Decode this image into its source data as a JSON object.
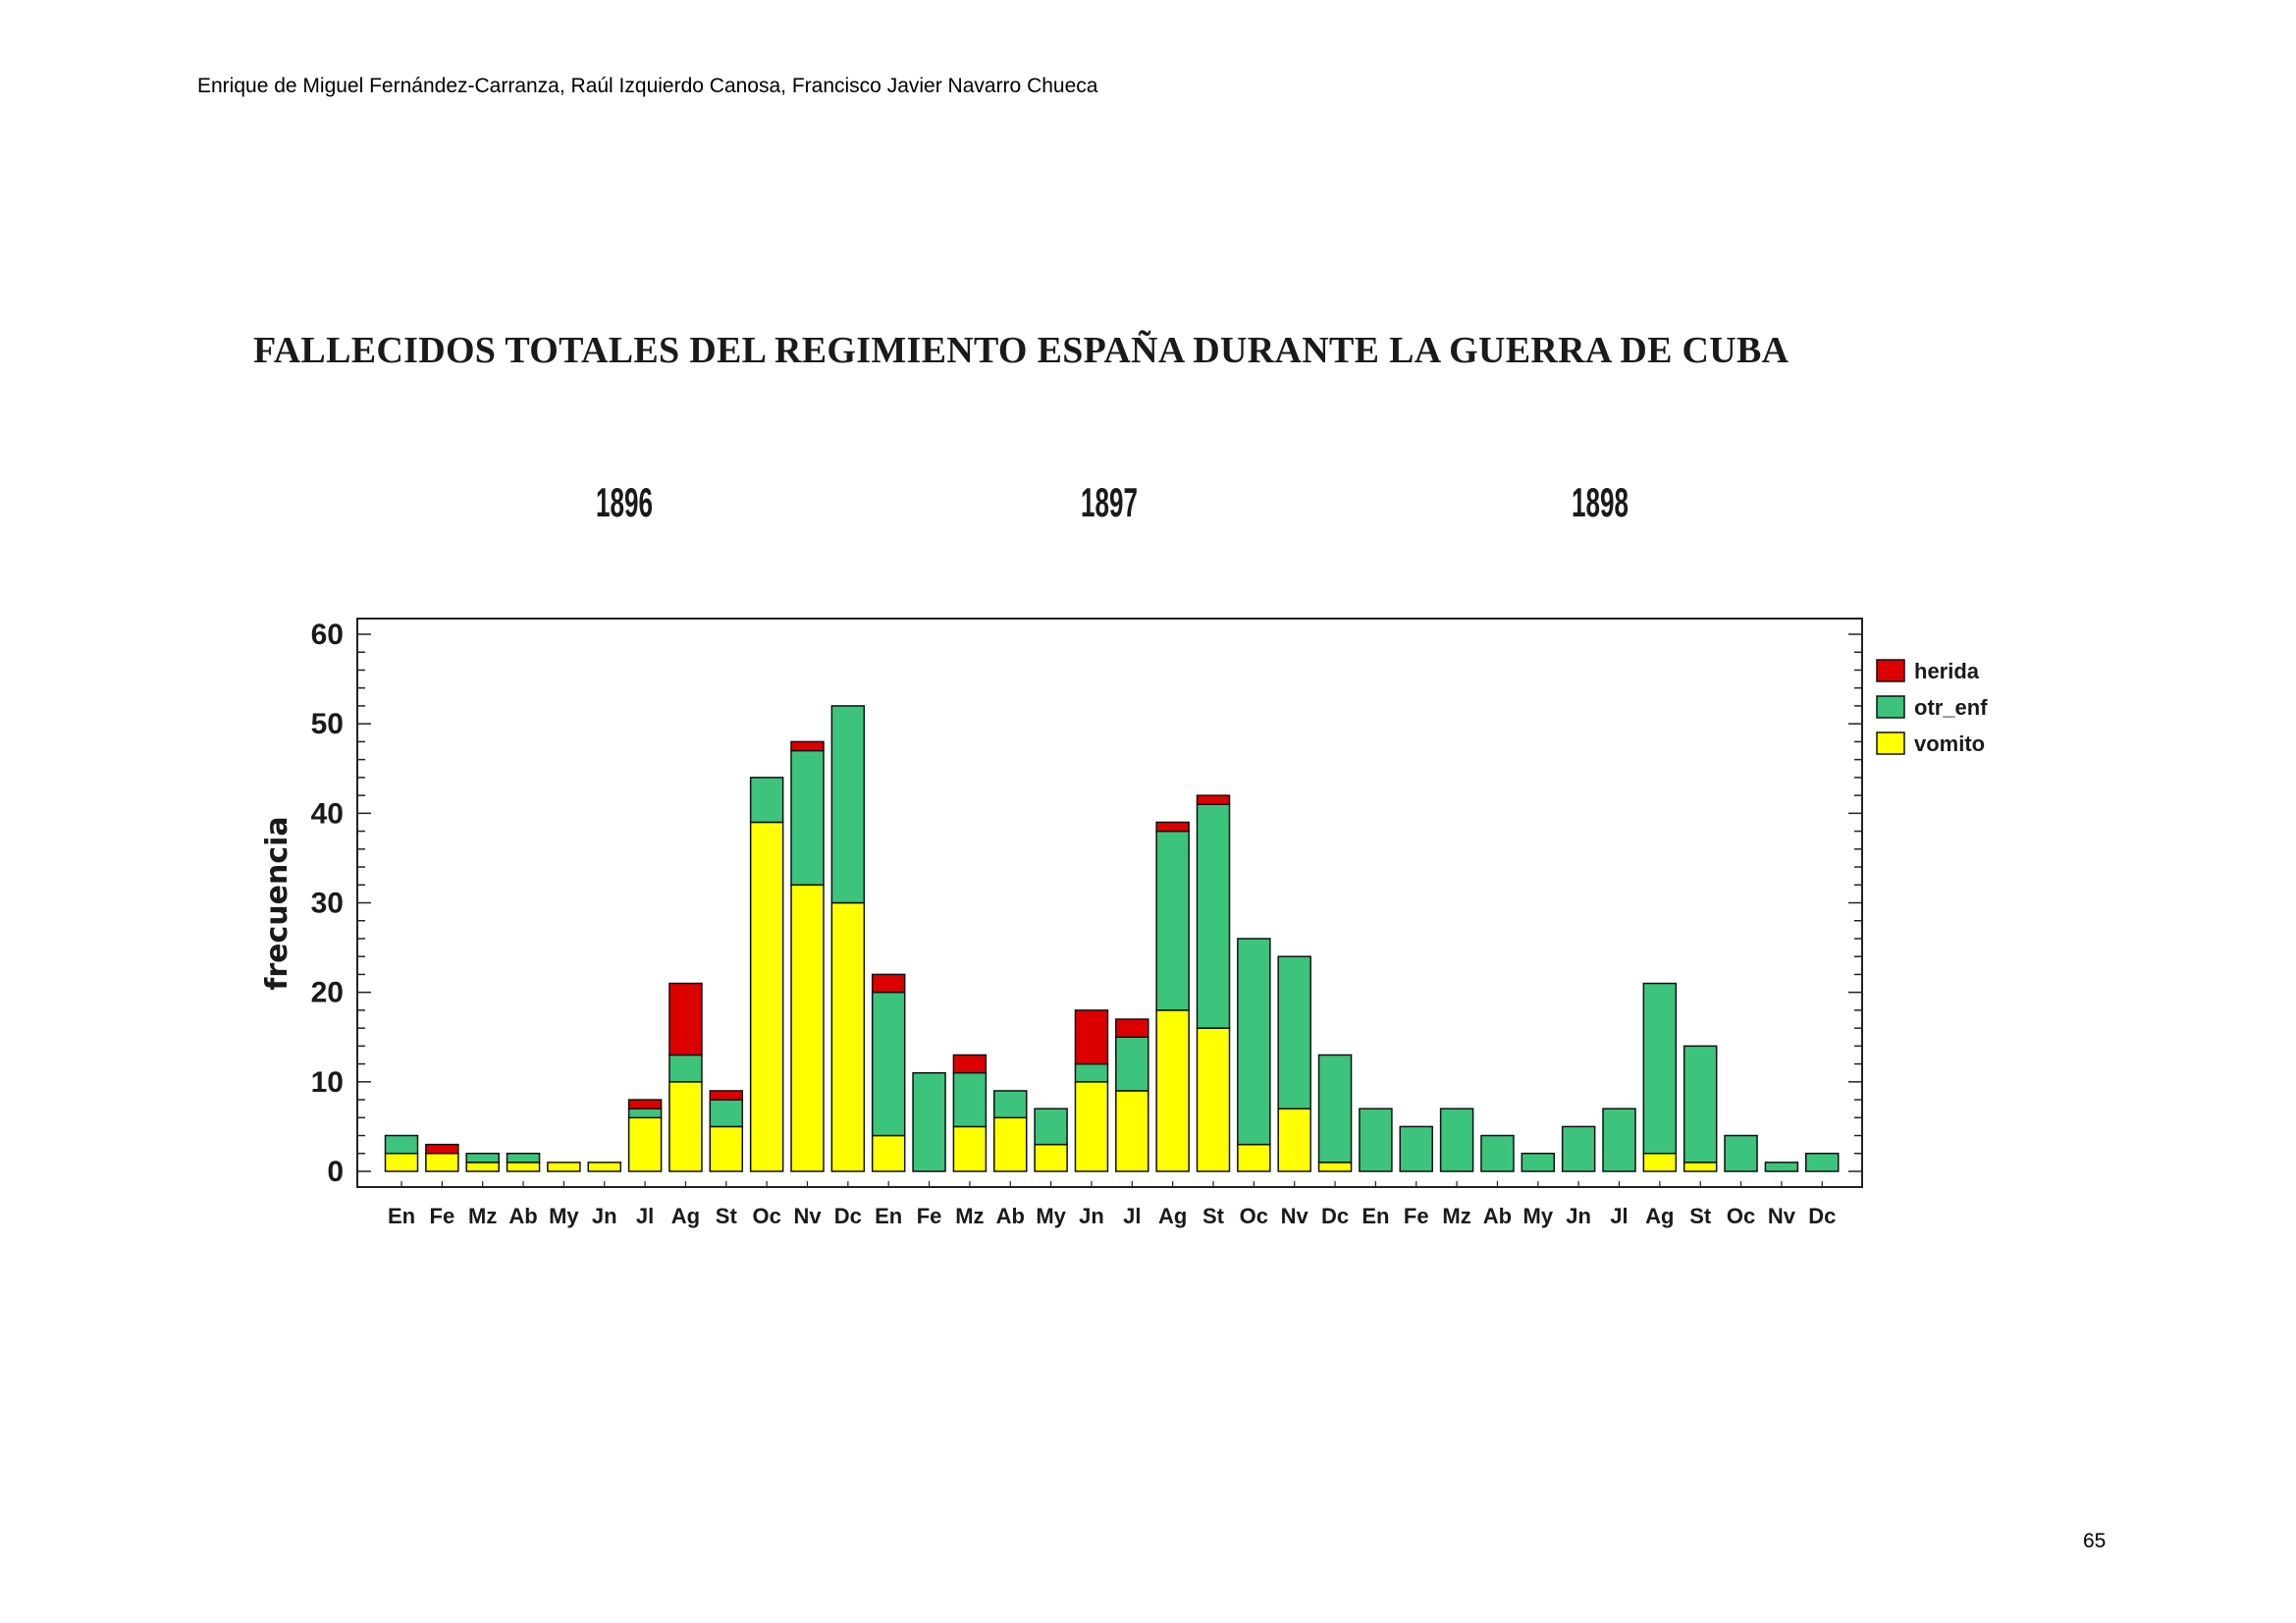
{
  "header": {
    "authors": "Enrique de Miguel Fernández-Carranza, Raúl Izquierdo Canosa, Francisco Javier Navarro Chueca"
  },
  "page_number": "65",
  "chart_data": {
    "type": "bar",
    "stacked": true,
    "title": "FALLECIDOS TOTALES DEL REGIMIENTO ESPAÑA DURANTE LA GUERRA DE CUBA",
    "years": [
      "1896",
      "1897",
      "1898"
    ],
    "xlabel": "",
    "ylabel": "frecuencia",
    "ylim": [
      0,
      62
    ],
    "yticks": [
      0,
      10,
      20,
      30,
      40,
      50,
      60
    ],
    "legend_position": "top-right",
    "categories": [
      "En",
      "Fe",
      "Mz",
      "Ab",
      "My",
      "Jn",
      "Jl",
      "Ag",
      "St",
      "Oc",
      "Nv",
      "Dc",
      "En",
      "Fe",
      "Mz",
      "Ab",
      "My",
      "Jn",
      "Jl",
      "Ag",
      "St",
      "Oc",
      "Nv",
      "Dc",
      "En",
      "Fe",
      "Mz",
      "Ab",
      "My",
      "Jn",
      "Jl",
      "Ag",
      "St",
      "Oc",
      "Nv",
      "Dc"
    ],
    "series": [
      {
        "name": "vomito",
        "color": "#ffff00",
        "values": [
          2,
          2,
          1,
          1,
          1,
          1,
          6,
          10,
          5,
          39,
          32,
          30,
          4,
          0,
          5,
          6,
          3,
          10,
          9,
          18,
          16,
          3,
          7,
          1,
          0,
          0,
          0,
          0,
          0,
          0,
          0,
          2,
          1,
          0,
          0,
          0
        ]
      },
      {
        "name": "otr_enf",
        "color": "#3cc47c",
        "values": [
          2,
          0,
          1,
          1,
          0,
          0,
          1,
          3,
          3,
          5,
          15,
          22,
          16,
          11,
          6,
          3,
          4,
          2,
          6,
          20,
          25,
          23,
          17,
          12,
          7,
          5,
          7,
          4,
          2,
          5,
          7,
          19,
          13,
          4,
          1,
          2
        ]
      },
      {
        "name": "herida",
        "color": "#dd0000",
        "values": [
          0,
          1,
          0,
          0,
          0,
          0,
          1,
          8,
          1,
          0,
          1,
          0,
          2,
          0,
          2,
          0,
          0,
          6,
          2,
          1,
          1,
          0,
          0,
          0,
          0,
          0,
          0,
          0,
          0,
          0,
          0,
          0,
          0,
          0,
          0,
          0
        ]
      }
    ],
    "legend_order": [
      "herida",
      "otr_enf",
      "vomito"
    ]
  }
}
